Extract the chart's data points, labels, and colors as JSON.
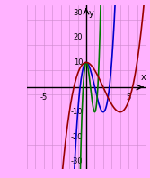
{
  "background_color": "#FFB3FF",
  "grid_color": "#CC88CC",
  "xlim": [
    -7,
    7
  ],
  "ylim": [
    -33,
    33
  ],
  "xticks": [
    -5,
    5
  ],
  "yticks": [
    -30,
    -20,
    -10,
    10,
    20,
    30
  ],
  "curve_original_color": "#0000CC",
  "curve_compressed_color": "#007700",
  "curve_stretched_color": "#990000",
  "axis_color": "#000000",
  "figsize": [
    1.67,
    1.98
  ],
  "dpi": 100,
  "coef_a": 5,
  "coef_b": -15,
  "coef_c": 0,
  "coef_d": 10
}
